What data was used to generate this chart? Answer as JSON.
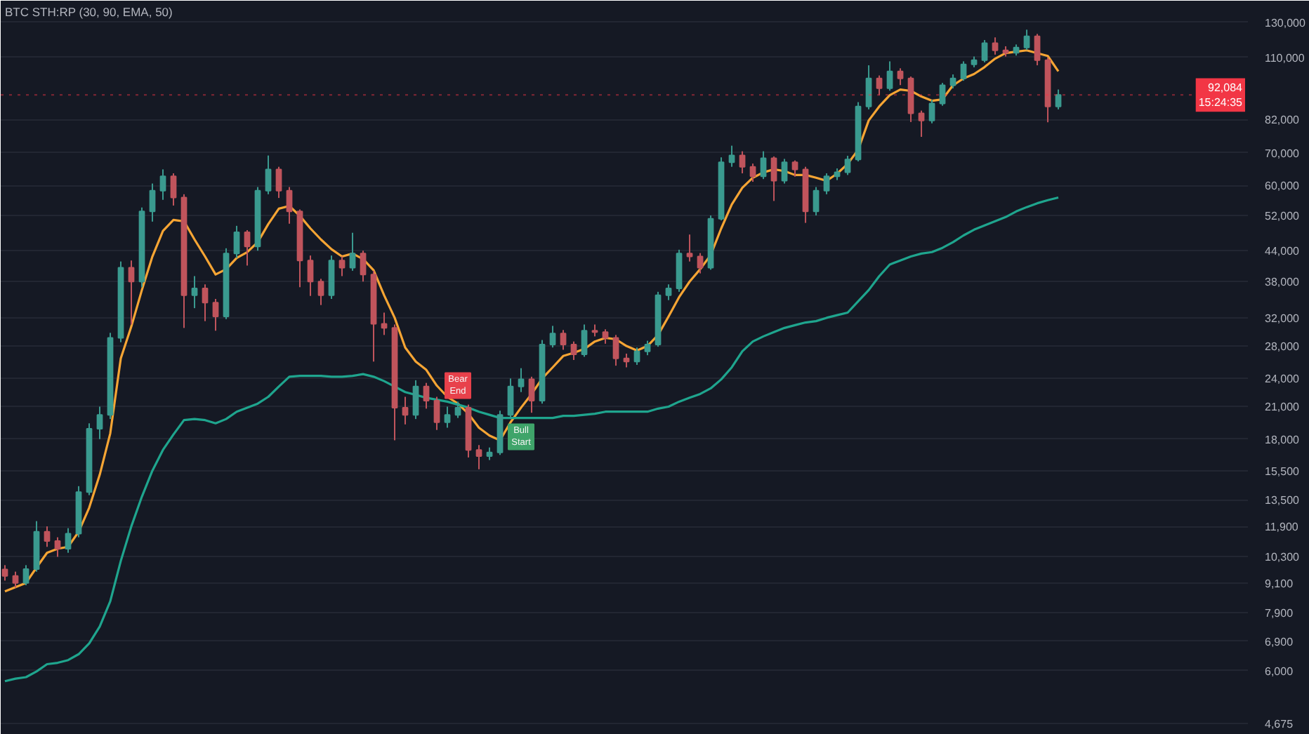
{
  "chart_data": {
    "type": "candlestick",
    "title": "BTC STH:RP (30, 90, EMA, 50)",
    "categories": [
      null,
      null,
      null,
      null,
      null,
      null,
      null,
      null,
      null,
      null,
      null,
      null,
      null,
      null,
      null,
      null,
      null,
      null,
      null,
      null,
      null,
      null,
      null,
      null,
      null,
      null,
      null,
      null,
      null,
      null,
      null,
      null,
      null,
      null,
      null,
      null,
      null,
      null,
      null,
      null,
      null,
      null,
      null,
      null,
      null,
      null,
      null,
      null,
      null,
      null,
      null,
      null,
      null,
      null,
      null,
      null,
      null,
      null,
      null,
      null,
      null,
      null,
      null,
      null,
      null,
      null,
      null,
      null,
      null,
      null,
      null,
      null,
      null,
      null,
      null,
      null,
      null,
      null,
      null,
      null,
      null,
      null,
      null,
      null,
      null,
      null,
      null,
      null,
      null,
      null,
      null,
      null,
      null,
      null,
      null,
      null,
      null,
      null,
      null,
      null,
      null
    ],
    "ohlc": [
      [
        9700,
        9900,
        9200,
        9410
      ],
      [
        9410,
        9600,
        8900,
        9100
      ],
      [
        9100,
        9900,
        9000,
        9720
      ],
      [
        9720,
        12200,
        9600,
        11600
      ],
      [
        11600,
        11900,
        10800,
        11100
      ],
      [
        11100,
        11300,
        10300,
        10700
      ],
      [
        10700,
        11800,
        10500,
        11500
      ],
      [
        11500,
        14400,
        11300,
        14000
      ],
      [
        14000,
        19400,
        13800,
        18900
      ],
      [
        18900,
        21000,
        18000,
        20200
      ],
      [
        20200,
        29800,
        19800,
        29100
      ],
      [
        29100,
        41800,
        28500,
        40600
      ],
      [
        40600,
        42000,
        31000,
        38000
      ],
      [
        38000,
        54000,
        37000,
        53000
      ],
      [
        53000,
        60500,
        50500,
        58500
      ],
      [
        58500,
        64700,
        56000,
        62600
      ],
      [
        62600,
        63500,
        54500,
        56600
      ],
      [
        56600,
        57500,
        30500,
        35600
      ],
      [
        35600,
        39000,
        33500,
        36800
      ],
      [
        36800,
        37500,
        31500,
        34400
      ],
      [
        34400,
        35000,
        30100,
        32200
      ],
      [
        32200,
        44500,
        31800,
        43400
      ],
      [
        43400,
        49500,
        42500,
        48000
      ],
      [
        48000,
        48500,
        41000,
        44900
      ],
      [
        44900,
        59500,
        44000,
        58500
      ],
      [
        58500,
        69100,
        57500,
        64700
      ],
      [
        64700,
        65500,
        56500,
        58500
      ],
      [
        58500,
        59500,
        50000,
        53000
      ],
      [
        53000,
        53500,
        37000,
        42000
      ],
      [
        42000,
        43000,
        35500,
        38000
      ],
      [
        38000,
        38500,
        34000,
        35600
      ],
      [
        35600,
        43000,
        35000,
        42000
      ],
      [
        42000,
        42800,
        39000,
        40600
      ],
      [
        40600,
        47900,
        40000,
        43400
      ],
      [
        43400,
        44000,
        38000,
        39300
      ],
      [
        39300,
        40000,
        26000,
        31100
      ],
      [
        31100,
        32800,
        29500,
        30500
      ],
      [
        30500,
        31000,
        17900,
        20900
      ],
      [
        20900,
        22000,
        19300,
        20200
      ],
      [
        20200,
        23800,
        19800,
        23100
      ],
      [
        23100,
        23500,
        20800,
        21600
      ],
      [
        21600,
        22000,
        18800,
        19500
      ],
      [
        19500,
        21000,
        19000,
        20200
      ],
      [
        20200,
        21500,
        19900,
        20900
      ],
      [
        20900,
        21200,
        16500,
        17100
      ],
      [
        17100,
        17500,
        15600,
        16600
      ],
      [
        16600,
        17300,
        16300,
        16900
      ],
      [
        16900,
        20600,
        16700,
        20200
      ],
      [
        20200,
        24000,
        19800,
        23100
      ],
      [
        23100,
        25200,
        22500,
        23900
      ],
      [
        23900,
        24200,
        20400,
        21600
      ],
      [
        21600,
        28800,
        21300,
        28200
      ],
      [
        28200,
        30800,
        27800,
        29700
      ],
      [
        29700,
        30200,
        27500,
        28200
      ],
      [
        28200,
        28600,
        26200,
        26900
      ],
      [
        26900,
        31000,
        26600,
        30100
      ],
      [
        30100,
        31000,
        29300,
        29900
      ],
      [
        29900,
        30300,
        28300,
        29100
      ],
      [
        29100,
        29500,
        25500,
        26400
      ],
      [
        26400,
        27000,
        25300,
        26000
      ],
      [
        26000,
        27800,
        25600,
        27300
      ],
      [
        27300,
        28700,
        26800,
        28200
      ],
      [
        28200,
        36200,
        27900,
        35600
      ],
      [
        35600,
        37500,
        34800,
        36800
      ],
      [
        36800,
        44200,
        36200,
        43400
      ],
      [
        43400,
        47500,
        41800,
        42800
      ],
      [
        42800,
        43500,
        39500,
        40600
      ],
      [
        40600,
        52000,
        40200,
        51200
      ],
      [
        51200,
        68500,
        50800,
        66900
      ],
      [
        66900,
        72400,
        65500,
        69100
      ],
      [
        69100,
        70500,
        63500,
        65500
      ],
      [
        65500,
        66500,
        61000,
        62600
      ],
      [
        62600,
        70500,
        61800,
        68200
      ],
      [
        68200,
        68800,
        55700,
        61300
      ],
      [
        61300,
        68000,
        60500,
        66900
      ],
      [
        66900,
        67500,
        62500,
        64700
      ],
      [
        64700,
        65500,
        50200,
        53000
      ],
      [
        53000,
        59500,
        52000,
        58500
      ],
      [
        58500,
        63500,
        57500,
        62600
      ],
      [
        62600,
        65000,
        61500,
        63800
      ],
      [
        63800,
        69000,
        63000,
        67800
      ],
      [
        67800,
        89000,
        67200,
        87200
      ],
      [
        87200,
        106000,
        86000,
        99600
      ],
      [
        99600,
        101000,
        92000,
        95100
      ],
      [
        95100,
        108000,
        94000,
        103000
      ],
      [
        103000,
        104500,
        96500,
        99600
      ],
      [
        99600,
        100500,
        81000,
        84400
      ],
      [
        84400,
        85500,
        75500,
        81600
      ],
      [
        81600,
        90000,
        80500,
        88400
      ],
      [
        88400,
        97500,
        87500,
        96400
      ],
      [
        96400,
        101500,
        95000,
        99600
      ],
      [
        99600,
        108000,
        98500,
        106500
      ],
      [
        106500,
        110500,
        105000,
        108600
      ],
      [
        108600,
        119500,
        107500,
        117700
      ],
      [
        117700,
        121000,
        111500,
        113800
      ],
      [
        113800,
        116000,
        110500,
        112500
      ],
      [
        112500,
        117000,
        111000,
        115300
      ],
      [
        115300,
        125500,
        114000,
        121600
      ],
      [
        121600,
        123000,
        106000,
        108600
      ],
      [
        108600,
        110000,
        80900,
        87200
      ],
      [
        87200,
        94500,
        86000,
        92084
      ]
    ],
    "colors": [
      "#c0545c",
      "#c0545c",
      "#3a9a8f",
      "#3a9a8f",
      "#c0545c",
      "#c0545c",
      "#3a9a8f",
      "#3a9a8f",
      "#3a9a8f",
      "#3a9a8f",
      "#3a9a8f",
      "#3a9a8f",
      "#c0545c",
      "#3a9a8f",
      "#3a9a8f",
      "#3a9a8f",
      "#c0545c",
      "#c0545c",
      "#3a9a8f",
      "#c0545c",
      "#c0545c",
      "#3a9a8f",
      "#3a9a8f",
      "#c0545c",
      "#3a9a8f",
      "#3a9a8f",
      "#c0545c",
      "#c0545c",
      "#c0545c",
      "#c0545c",
      "#c0545c",
      "#3a9a8f",
      "#c0545c",
      "#3a9a8f",
      "#c0545c",
      "#c0545c",
      "#c0545c",
      "#c0545c",
      "#c0545c",
      "#3a9a8f",
      "#c0545c",
      "#c0545c",
      "#3a9a8f",
      "#3a9a8f",
      "#c0545c",
      "#c0545c",
      "#3a9a8f",
      "#3a9a8f",
      "#3a9a8f",
      "#3a9a8f",
      "#c0545c",
      "#3a9a8f",
      "#3a9a8f",
      "#c0545c",
      "#c0545c",
      "#3a9a8f",
      "#c0545c",
      "#c0545c",
      "#c0545c",
      "#c0545c",
      "#3a9a8f",
      "#3a9a8f",
      "#3a9a8f",
      "#3a9a8f",
      "#3a9a8f",
      "#c0545c",
      "#c0545c",
      "#3a9a8f",
      "#3a9a8f",
      "#3a9a8f",
      "#c0545c",
      "#c0545c",
      "#3a9a8f",
      "#c0545c",
      "#3a9a8f",
      "#c0545c",
      "#c0545c",
      "#3a9a8f",
      "#3a9a8f",
      "#3a9a8f",
      "#3a9a8f",
      "#3a9a8f",
      "#3a9a8f",
      "#c0545c",
      "#3a9a8f",
      "#c0545c",
      "#c0545c",
      "#c0545c",
      "#3a9a8f",
      "#3a9a8f",
      "#3a9a8f",
      "#3a9a8f",
      "#3a9a8f",
      "#3a9a8f",
      "#c0545c",
      "#c0545c",
      "#3a9a8f",
      "#3a9a8f",
      "#c0545c",
      "#c0545c",
      "#3a9a8f"
    ],
    "series": [
      {
        "type": "line",
        "color": "#f6a534",
        "values": [
          8740,
          8920,
          9100,
          9790,
          10500,
          10700,
          10800,
          11600,
          13000,
          15200,
          18500,
          26400,
          30700,
          36500,
          42800,
          48300,
          50900,
          50600,
          46400,
          42800,
          39300,
          40300,
          42500,
          43700,
          45800,
          49900,
          53700,
          54400,
          51900,
          48900,
          46400,
          44300,
          42800,
          43400,
          42300,
          40100,
          35600,
          32000,
          27800,
          26000,
          25000,
          23200,
          22000,
          21300,
          20300,
          19000,
          18300,
          17900,
          19500,
          20900,
          22300,
          24000,
          25300,
          26700,
          27100,
          27600,
          28600,
          29100,
          28900,
          28000,
          27400,
          28000,
          29500,
          32200,
          35300,
          38000,
          40300,
          43100,
          48900,
          54800,
          59300,
          62200,
          63800,
          64700,
          64200,
          63000,
          63000,
          62200,
          61300,
          63400,
          66400,
          71000,
          81600,
          87200,
          92000,
          94500,
          93900,
          91400,
          89600,
          90200,
          96400,
          99600,
          101700,
          105100,
          109400,
          112300,
          113100,
          113800,
          112300,
          110800,
          103000
        ]
      },
      {
        "type": "line",
        "color": "#1fa58e",
        "values": [
          5710,
          5780,
          5820,
          5980,
          6190,
          6230,
          6310,
          6490,
          6830,
          7400,
          8340,
          10100,
          11900,
          13700,
          15500,
          17100,
          18400,
          19700,
          19800,
          19700,
          19400,
          19800,
          20500,
          20900,
          21300,
          22000,
          23100,
          24200,
          24300,
          24300,
          24300,
          24200,
          24200,
          24300,
          24500,
          24200,
          23700,
          23100,
          22500,
          22200,
          21900,
          21700,
          21500,
          21200,
          20900,
          20500,
          20200,
          19900,
          19900,
          19900,
          19900,
          19900,
          19900,
          20100,
          20100,
          20200,
          20300,
          20500,
          20500,
          20500,
          20500,
          20500,
          20800,
          21000,
          21500,
          21900,
          22300,
          22900,
          23900,
          25300,
          27300,
          28600,
          29300,
          29900,
          30500,
          30900,
          31300,
          31500,
          32000,
          32400,
          32800,
          34600,
          36500,
          39000,
          41200,
          42000,
          42800,
          43400,
          43700,
          44600,
          45800,
          47300,
          48600,
          49600,
          50600,
          51600,
          53000,
          54100,
          55100,
          55900,
          56600
        ]
      },
      {
        "type": "scatter",
        "color": "#e8414b",
        "marker": "square",
        "values": [
          null,
          null,
          null,
          null,
          null,
          null,
          null,
          null,
          null,
          null,
          null,
          null,
          null,
          null,
          null,
          null,
          null,
          null,
          null,
          null,
          null,
          null,
          null,
          null,
          null,
          null,
          null,
          null,
          null,
          null,
          null,
          null,
          null,
          null,
          null,
          null,
          null,
          null,
          null,
          null,
          null,
          null,
          null,
          23200,
          null,
          null,
          null,
          null,
          null,
          null,
          null,
          null,
          null,
          null,
          null,
          null,
          null,
          null,
          null,
          null,
          null,
          null,
          null,
          null,
          null,
          null,
          null,
          null,
          null,
          null,
          null,
          null,
          null,
          null,
          null,
          null,
          null,
          null,
          null,
          null,
          null,
          null,
          null,
          null,
          null,
          null,
          null,
          null,
          null,
          null,
          null,
          null,
          null,
          null,
          null,
          null,
          null,
          null,
          null,
          null,
          null
        ],
        "value_labels": [
          null,
          null,
          null,
          null,
          null,
          null,
          null,
          null,
          null,
          null,
          null,
          null,
          null,
          null,
          null,
          null,
          null,
          null,
          null,
          null,
          null,
          null,
          null,
          null,
          null,
          null,
          null,
          null,
          null,
          null,
          null,
          null,
          null,
          null,
          null,
          null,
          null,
          null,
          null,
          null,
          null,
          null,
          null,
          "Bear\nEnd",
          null,
          null,
          null,
          null,
          null,
          null,
          null,
          null,
          null,
          null,
          null,
          null,
          null,
          null,
          null,
          null,
          null,
          null,
          null,
          null,
          null,
          null,
          null,
          null,
          null,
          null,
          null,
          null,
          null,
          null,
          null,
          null,
          null,
          null,
          null,
          null,
          null,
          null,
          null,
          null,
          null,
          null,
          null,
          null,
          null,
          null,
          null,
          null,
          null,
          null,
          null,
          null,
          null,
          null,
          null,
          null,
          null
        ]
      },
      {
        "type": "scatter",
        "color": "#3fa46a",
        "marker": "square",
        "values": [
          null,
          null,
          null,
          null,
          null,
          null,
          null,
          null,
          null,
          null,
          null,
          null,
          null,
          null,
          null,
          null,
          null,
          null,
          null,
          null,
          null,
          null,
          null,
          null,
          null,
          null,
          null,
          null,
          null,
          null,
          null,
          null,
          null,
          null,
          null,
          null,
          null,
          null,
          null,
          null,
          null,
          null,
          null,
          null,
          null,
          null,
          null,
          null,
          null,
          18200,
          null,
          null,
          null,
          null,
          null,
          null,
          null,
          null,
          null,
          null,
          null,
          null,
          null,
          null,
          null,
          null,
          null,
          null,
          null,
          null,
          null,
          null,
          null,
          null,
          null,
          null,
          null,
          null,
          null,
          null,
          null,
          null,
          null,
          null,
          null,
          null,
          null,
          null,
          null,
          null,
          null,
          null,
          null,
          null,
          null,
          null,
          null,
          null,
          null,
          null,
          null
        ],
        "value_labels": [
          null,
          null,
          null,
          null,
          null,
          null,
          null,
          null,
          null,
          null,
          null,
          null,
          null,
          null,
          null,
          null,
          null,
          null,
          null,
          null,
          null,
          null,
          null,
          null,
          null,
          null,
          null,
          null,
          null,
          null,
          null,
          null,
          null,
          null,
          null,
          null,
          null,
          null,
          null,
          null,
          null,
          null,
          null,
          null,
          null,
          null,
          null,
          null,
          null,
          "Bull\nStart",
          null,
          null,
          null,
          null,
          null,
          null,
          null,
          null,
          null,
          null,
          null,
          null,
          null,
          null,
          null,
          null,
          null,
          null,
          null,
          null,
          null,
          null,
          null,
          null,
          null,
          null,
          null,
          null,
          null,
          null,
          null,
          null,
          null,
          null,
          null,
          null,
          null,
          null,
          null,
          null,
          null,
          null,
          null,
          null,
          null,
          null,
          null,
          null,
          null,
          null,
          null
        ]
      }
    ],
    "ylim": [
      4430,
      144000
    ],
    "yticks": [
      {
        "value": 4675,
        "label": "4,675"
      },
      {
        "value": 6000,
        "label": "6,000"
      },
      {
        "value": 6900,
        "label": "6,900"
      },
      {
        "value": 7900,
        "label": "7,900"
      },
      {
        "value": 9100,
        "label": "9,100"
      },
      {
        "value": 10300,
        "label": "10,300"
      },
      {
        "value": 11900,
        "label": "11,900"
      },
      {
        "value": 13500,
        "label": "13,500"
      },
      {
        "value": 15500,
        "label": "15,500"
      },
      {
        "value": 18000,
        "label": "18,000"
      },
      {
        "value": 21000,
        "label": "21,000"
      },
      {
        "value": 24000,
        "label": "24,000"
      },
      {
        "value": 28000,
        "label": "28,000"
      },
      {
        "value": 32000,
        "label": "32,000"
      },
      {
        "value": 38000,
        "label": "38,000"
      },
      {
        "value": 44000,
        "label": "44,000"
      },
      {
        "value": 52000,
        "label": "52,000"
      },
      {
        "value": 60000,
        "label": "60,000"
      },
      {
        "value": 70000,
        "label": "70,000"
      },
      {
        "value": 82000,
        "label": "82,000"
      },
      {
        "value": 110000,
        "label": "110,000"
      },
      {
        "value": 130000,
        "label": "130,000"
      }
    ],
    "log": true,
    "grid": "y",
    "tick_labels": "y",
    "ref_lines": [
      {
        "axis": "y",
        "value": 92084,
        "label": "92,084\n15:24:35",
        "color": "#f23645",
        "line_style": "dotted"
      }
    ]
  }
}
